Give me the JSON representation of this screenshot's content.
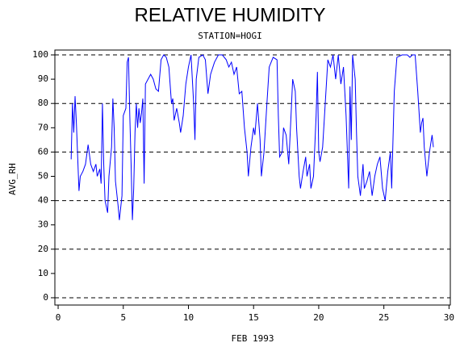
{
  "chart_data": {
    "type": "line",
    "title": "RELATIVE HUMIDITY",
    "subtitle": "STATION=HOGI",
    "x_label": "FEB 1993",
    "y_label": "AVG_RH",
    "xlim": [
      -0.25,
      30.1
    ],
    "ylim": [
      -3,
      102
    ],
    "xticks": [
      0,
      5,
      10,
      15,
      20,
      25,
      30
    ],
    "yticks": [
      0,
      10,
      20,
      30,
      40,
      50,
      60,
      70,
      80,
      90,
      100
    ],
    "grid_lines": [
      0,
      20,
      40,
      60,
      80,
      100
    ],
    "color": "#0000ff",
    "x": [
      1.0,
      1.1,
      1.2,
      1.3,
      1.4,
      1.5,
      1.6,
      1.7,
      1.9,
      2.1,
      2.3,
      2.5,
      2.7,
      2.9,
      3.0,
      3.2,
      3.3,
      3.4,
      3.5,
      3.6,
      3.8,
      3.9,
      4.1,
      4.2,
      4.3,
      4.4,
      4.6,
      4.7,
      4.9,
      5.0,
      5.2,
      5.3,
      5.4,
      5.5,
      5.6,
      5.7,
      5.8,
      5.9,
      6.0,
      6.1,
      6.2,
      6.3,
      6.4,
      6.5,
      6.6,
      6.7,
      6.9,
      7.1,
      7.3,
      7.5,
      7.7,
      7.9,
      8.1,
      8.3,
      8.5,
      8.7,
      8.8,
      8.9,
      9.1,
      9.3,
      9.4,
      9.6,
      9.8,
      10.0,
      10.2,
      10.4,
      10.5,
      10.6,
      10.8,
      11.1,
      11.3,
      11.5,
      11.7,
      12.0,
      12.3,
      12.6,
      12.9,
      13.1,
      13.3,
      13.5,
      13.7,
      13.9,
      14.1,
      14.3,
      14.5,
      14.6,
      14.8,
      15.0,
      15.1,
      15.3,
      15.5,
      15.6,
      15.8,
      16.0,
      16.2,
      16.5,
      16.8,
      16.9,
      17.0,
      17.2,
      17.3,
      17.5,
      17.7,
      17.9,
      18.0,
      18.2,
      18.3,
      18.5,
      18.6,
      18.8,
      19.0,
      19.1,
      19.3,
      19.4,
      19.6,
      19.8,
      19.9,
      20.0,
      20.1,
      20.3,
      20.5,
      20.7,
      20.9,
      21.1,
      21.3,
      21.5,
      21.7,
      21.9,
      22.1,
      22.3,
      22.4,
      22.5,
      22.6,
      22.8,
      22.9,
      23.0,
      23.2,
      23.4,
      23.5,
      23.7,
      23.9,
      24.1,
      24.3,
      24.5,
      24.7,
      24.9,
      25.1,
      25.3,
      25.5,
      25.6,
      25.8,
      26.0,
      26.4,
      26.8,
      27.0,
      27.2,
      27.4,
      27.6,
      27.8,
      27.9,
      28.0,
      28.1,
      28.3,
      28.4,
      28.5,
      28.7,
      28.8
    ],
    "values": [
      57,
      80,
      68,
      83,
      72,
      58,
      44,
      50,
      52,
      55,
      63,
      55,
      52,
      55,
      50,
      53,
      47,
      80,
      55,
      40,
      35,
      50,
      62,
      82,
      70,
      48,
      38,
      32,
      42,
      75,
      78,
      97,
      99,
      75,
      55,
      32,
      45,
      68,
      80,
      70,
      78,
      72,
      76,
      82,
      47,
      88,
      90,
      92,
      90,
      86,
      85,
      98,
      100,
      99,
      95,
      80,
      82,
      73,
      78,
      72,
      68,
      75,
      88,
      95,
      100,
      80,
      65,
      90,
      99,
      100,
      98,
      84,
      92,
      97,
      100,
      100,
      98,
      95,
      97,
      92,
      95,
      84,
      85,
      70,
      60,
      50,
      62,
      70,
      67,
      80,
      65,
      50,
      60,
      78,
      95,
      99,
      98,
      75,
      58,
      60,
      70,
      67,
      55,
      78,
      90,
      85,
      70,
      50,
      45,
      52,
      58,
      50,
      55,
      45,
      50,
      75,
      93,
      60,
      56,
      62,
      80,
      98,
      95,
      100,
      90,
      100,
      88,
      95,
      75,
      45,
      87,
      65,
      100,
      90,
      68,
      50,
      42,
      55,
      45,
      48,
      52,
      42,
      50,
      55,
      58,
      45,
      40,
      52,
      60,
      45,
      85,
      99,
      100,
      100,
      99,
      100,
      100,
      85,
      68,
      72,
      74,
      62,
      50,
      55,
      60,
      67,
      62
    ]
  }
}
